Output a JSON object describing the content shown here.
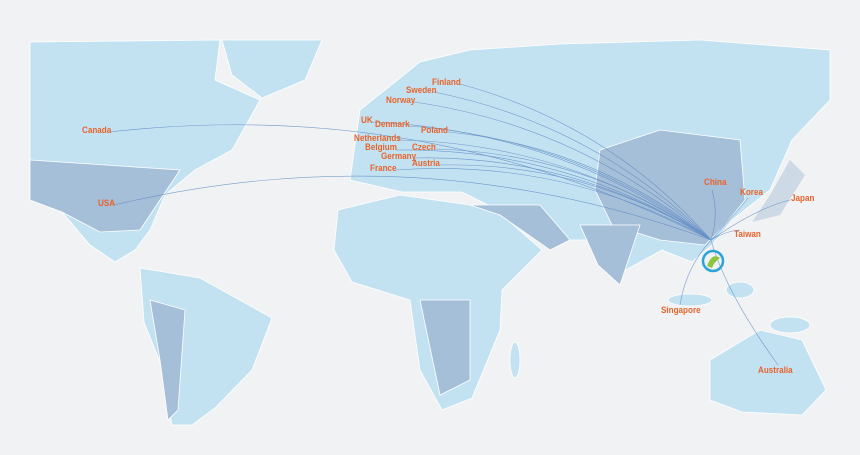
{
  "colors": {
    "land": "#c3e2f1",
    "land_dark": "#a6bfd8",
    "land_darker": "#8fa4c4",
    "route": "#5a86c4",
    "label": "#e8632c",
    "background": "#f1f2f4"
  },
  "hub": {
    "label": "",
    "icon": "company-logo-icon"
  },
  "destinations": [
    {
      "name": "Finland"
    },
    {
      "name": "Sweden"
    },
    {
      "name": "Norway"
    },
    {
      "name": "UK"
    },
    {
      "name": "Denmark"
    },
    {
      "name": "Netherlands"
    },
    {
      "name": "Poland"
    },
    {
      "name": "Belgium"
    },
    {
      "name": "Czech"
    },
    {
      "name": "Germany"
    },
    {
      "name": "Austria"
    },
    {
      "name": "France"
    },
    {
      "name": "Canada"
    },
    {
      "name": "USA"
    },
    {
      "name": "China"
    },
    {
      "name": "Korea"
    },
    {
      "name": "Japan"
    },
    {
      "name": "Taiwan"
    },
    {
      "name": "Singapore"
    },
    {
      "name": "Australia"
    }
  ]
}
